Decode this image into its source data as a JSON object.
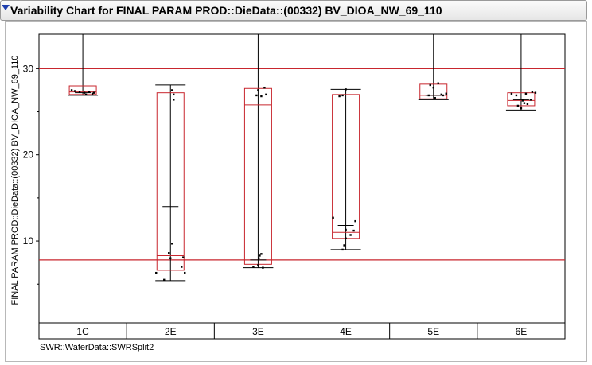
{
  "window": {
    "title": "Variability Chart for FINAL PARAM PROD::DieData::(00332) BV_DIOA_NW_69_110"
  },
  "colors": {
    "box": "#c8262e",
    "limit": "#c8262e",
    "whisker": "#000000",
    "point": "#000000"
  },
  "chart_data": {
    "type": "variability",
    "title": "Variability Chart for FINAL PARAM PROD::DieData::(00332) BV_DIOA_NW_69_110",
    "ylabel": "FINAL PARAM PROD::DieData::(00332) BV_DIOA_NW_69_110",
    "xlabel": "SWR::WaferData::SWRSplit2",
    "categories": [
      "1C",
      "2E",
      "3E",
      "4E",
      "5E",
      "6E"
    ],
    "yticks": [
      "10",
      "20",
      "30"
    ],
    "ytick_values": [
      10,
      20,
      30
    ],
    "ylim": [
      0.5,
      34
    ],
    "limit_lines": [
      30,
      7.8
    ],
    "groups": [
      {
        "category": "1C",
        "q1": 27.0,
        "median": 27.3,
        "q3": 28.0,
        "min": 26.9,
        "max": 34,
        "mean": 27.2,
        "points": [
          [
            -0.35,
            27.5
          ],
          [
            -0.25,
            27.4
          ],
          [
            -0.1,
            27.3
          ],
          [
            0.05,
            27.2
          ],
          [
            0.1,
            27.0
          ],
          [
            0.2,
            27.3
          ],
          [
            0.3,
            27.1
          ],
          [
            0.35,
            27.2
          ]
        ]
      },
      {
        "category": "2E",
        "q1": 6.6,
        "median": 8.3,
        "q3": 27.2,
        "min": 5.4,
        "max": 28.1,
        "mean": 14.0,
        "points": [
          [
            -0.45,
            6.3
          ],
          [
            -0.2,
            5.5
          ],
          [
            -0.05,
            8.6
          ],
          [
            0.0,
            8.0
          ],
          [
            0.05,
            9.7
          ],
          [
            0.1,
            26.4
          ],
          [
            0.1,
            27.0
          ],
          [
            0.05,
            27.5
          ],
          [
            0.35,
            7.0
          ],
          [
            0.4,
            8.1
          ],
          [
            0.45,
            6.3
          ]
        ]
      },
      {
        "category": "3E",
        "q1": 7.3,
        "median": 25.8,
        "q3": 27.7,
        "min": 6.9,
        "max": 34,
        "mean": 7.8,
        "points": [
          [
            -0.15,
            7.0
          ],
          [
            0.0,
            7.2
          ],
          [
            0.02,
            8.0
          ],
          [
            0.05,
            8.3
          ],
          [
            0.1,
            8.5
          ],
          [
            -0.05,
            26.9
          ],
          [
            0.1,
            26.8
          ],
          [
            0.0,
            27.5
          ],
          [
            0.2,
            27.8
          ],
          [
            0.25,
            27.0
          ],
          [
            0.15,
            6.9
          ]
        ]
      },
      {
        "category": "4E",
        "q1": 10.3,
        "median": 11.0,
        "q3": 27.0,
        "min": 9.0,
        "max": 27.6,
        "mean": 11.8,
        "points": [
          [
            -0.4,
            12.7
          ],
          [
            -0.1,
            26.9
          ],
          [
            -0.2,
            26.8
          ],
          [
            0.0,
            27.6
          ],
          [
            0.0,
            11.3
          ],
          [
            0.0,
            10.3
          ],
          [
            -0.05,
            9.5
          ],
          [
            0.15,
            10.7
          ],
          [
            0.25,
            11.2
          ],
          [
            0.3,
            12.3
          ],
          [
            -0.1,
            9.0
          ]
        ]
      },
      {
        "category": "5E",
        "q1": 26.5,
        "median": 26.9,
        "q3": 28.2,
        "min": 26.4,
        "max": 34,
        "mean": 26.9,
        "points": [
          [
            -0.15,
            26.9
          ],
          [
            0.0,
            27.8
          ],
          [
            0.05,
            26.6
          ],
          [
            0.15,
            28.3
          ],
          [
            0.25,
            27.0
          ],
          [
            0.3,
            26.9
          ],
          [
            0.4,
            27.1
          ],
          [
            -0.1,
            28.1
          ]
        ]
      },
      {
        "category": "6E",
        "q1": 25.7,
        "median": 26.3,
        "q3": 27.2,
        "min": 25.2,
        "max": 34,
        "mean": 26.4,
        "points": [
          [
            -0.3,
            27.1
          ],
          [
            -0.15,
            26.9
          ],
          [
            -0.1,
            25.7
          ],
          [
            0.05,
            26.3
          ],
          [
            0.1,
            26.0
          ],
          [
            0.15,
            27.1
          ],
          [
            0.2,
            25.9
          ],
          [
            0.3,
            26.4
          ],
          [
            0.35,
            27.3
          ],
          [
            0.45,
            27.2
          ],
          [
            0.0,
            25.4
          ]
        ]
      }
    ]
  }
}
